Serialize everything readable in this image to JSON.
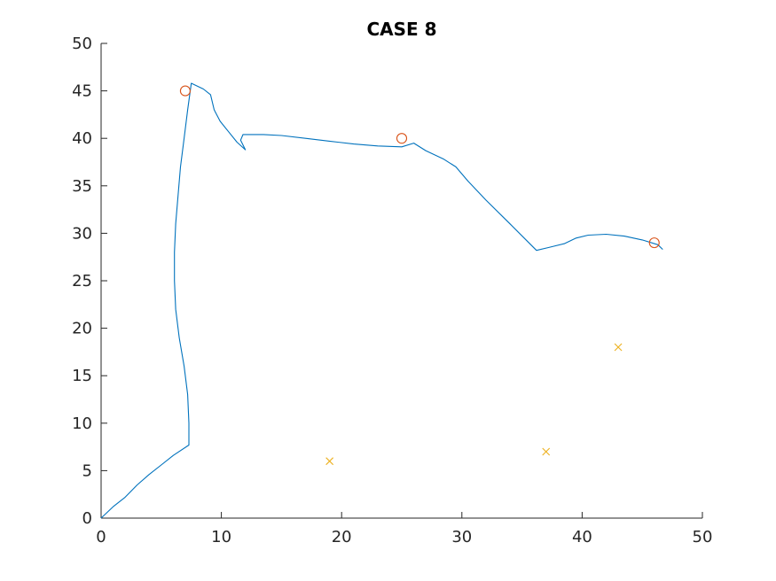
{
  "chart_data": {
    "type": "line",
    "title": "CASE 8",
    "xlabel": "",
    "ylabel": "",
    "xlim": [
      0,
      50
    ],
    "ylim": [
      0,
      50
    ],
    "x_ticks": [
      "0",
      "10",
      "20",
      "30",
      "40",
      "50"
    ],
    "y_ticks": [
      "0",
      "5",
      "10",
      "15",
      "20",
      "25",
      "30",
      "35",
      "40",
      "45",
      "50"
    ],
    "grid": false,
    "colors": {
      "path": "#0072BD",
      "circles": "#D95319",
      "crosses": "#EDB120"
    },
    "series": [
      {
        "type": "line",
        "points": [
          [
            0,
            0
          ],
          [
            1,
            1.2
          ],
          [
            2,
            2.2
          ],
          [
            3,
            3.5
          ],
          [
            4,
            4.6
          ],
          [
            5,
            5.6
          ],
          [
            6,
            6.6
          ],
          [
            7.3,
            7.7
          ],
          [
            7.3,
            10
          ],
          [
            7.2,
            13
          ],
          [
            6.9,
            16
          ],
          [
            6.5,
            19
          ],
          [
            6.2,
            22
          ],
          [
            6.1,
            25
          ],
          [
            6.1,
            28
          ],
          [
            6.2,
            31
          ],
          [
            6.4,
            34
          ],
          [
            6.6,
            37
          ],
          [
            6.9,
            40
          ],
          [
            7.2,
            43
          ],
          [
            7.5,
            45.8
          ],
          [
            8.5,
            45.2
          ],
          [
            9.1,
            44.6
          ],
          [
            9.4,
            43
          ],
          [
            9.9,
            41.8
          ],
          [
            10.6,
            40.7
          ],
          [
            11.3,
            39.6
          ],
          [
            12.0,
            38.8
          ],
          [
            11.6,
            39.8
          ],
          [
            11.8,
            40.4
          ],
          [
            13.5,
            40.4
          ],
          [
            15,
            40.3
          ],
          [
            17,
            40
          ],
          [
            19,
            39.7
          ],
          [
            21,
            39.4
          ],
          [
            23,
            39.2
          ],
          [
            25,
            39.1
          ],
          [
            26,
            39.5
          ],
          [
            27,
            38.7
          ],
          [
            28.5,
            37.8
          ],
          [
            29.5,
            37
          ],
          [
            30.5,
            35.5
          ],
          [
            32,
            33.5
          ],
          [
            34,
            31
          ],
          [
            36.2,
            28.2
          ],
          [
            37.2,
            28.5
          ],
          [
            38.5,
            28.9
          ],
          [
            39.5,
            29.5
          ],
          [
            40.5,
            29.8
          ],
          [
            42,
            29.9
          ],
          [
            43.5,
            29.7
          ],
          [
            45,
            29.3
          ],
          [
            46.3,
            28.8
          ],
          [
            46.7,
            28.3
          ]
        ]
      },
      {
        "type": "scatter",
        "marker": "circle",
        "points": [
          [
            7,
            45
          ],
          [
            25,
            40
          ],
          [
            46,
            29
          ]
        ]
      },
      {
        "type": "scatter",
        "marker": "x",
        "points": [
          [
            19,
            6
          ],
          [
            37,
            7
          ],
          [
            43,
            18
          ]
        ]
      }
    ]
  }
}
